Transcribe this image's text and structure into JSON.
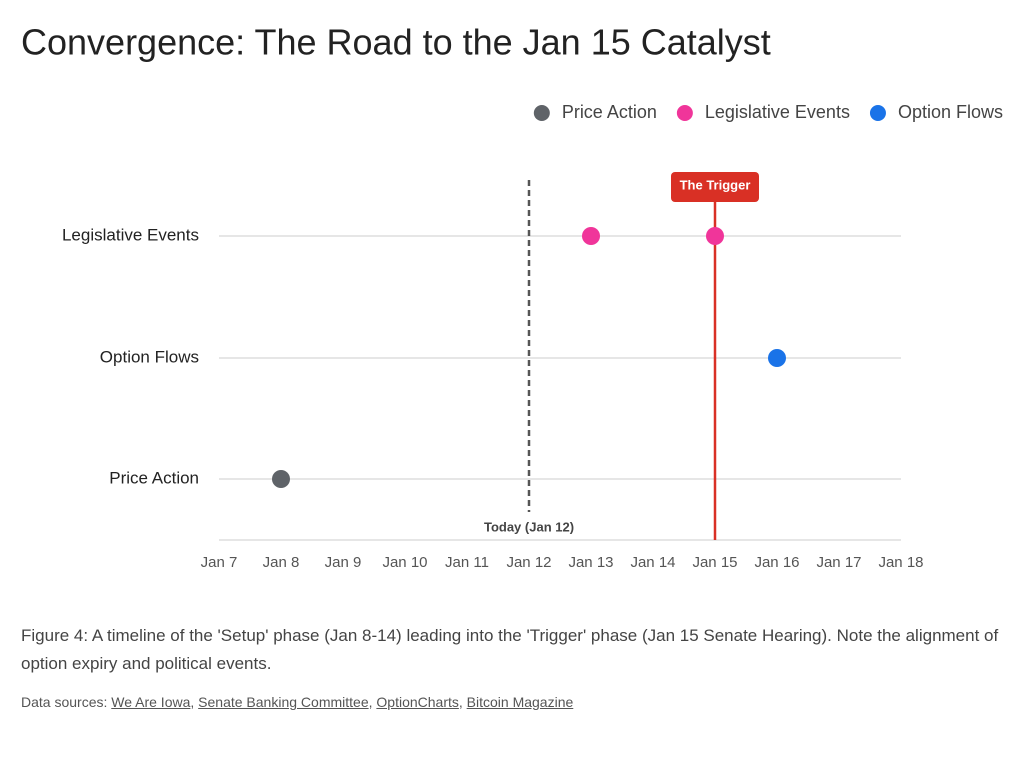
{
  "chart_data": {
    "type": "timeline",
    "title": "Convergence: The Road to the Jan 15 Catalyst",
    "x_categories": [
      "Jan 7",
      "Jan 8",
      "Jan 9",
      "Jan 10",
      "Jan 11",
      "Jan 12",
      "Jan 13",
      "Jan 14",
      "Jan 15",
      "Jan 16",
      "Jan 17",
      "Jan 18"
    ],
    "y_categories": [
      "Legislative Events",
      "Option Flows",
      "Price Action"
    ],
    "series": [
      {
        "name": "Price Action",
        "color": "#5f6368",
        "x": [
          "Jan 8"
        ]
      },
      {
        "name": "Legislative Events",
        "color": "#f0359a",
        "x": [
          "Jan 13",
          "Jan 15"
        ]
      },
      {
        "name": "Option Flows",
        "color": "#1a73e8",
        "x": [
          "Jan 16"
        ]
      }
    ],
    "reference_lines": [
      {
        "x": "Jan 12",
        "label": "Today (Jan 12)",
        "color": "#555555",
        "style": "dashed"
      },
      {
        "x": "Jan 15",
        "label": "The Trigger",
        "color": "#d93025",
        "style": "solid"
      }
    ],
    "grid": true,
    "legend_position": "top-right"
  },
  "caption": "Figure 4: A timeline of the 'Setup' phase (Jan 8-14) leading into the 'Trigger' phase (Jan 15 Senate Hearing). Note the alignment of option expiry and political events.",
  "sources": {
    "label": "Data sources:",
    "separator": ",",
    "links": [
      "We Are Iowa",
      "Senate Banking Committee",
      "OptionCharts",
      "Bitcoin Magazine"
    ]
  }
}
